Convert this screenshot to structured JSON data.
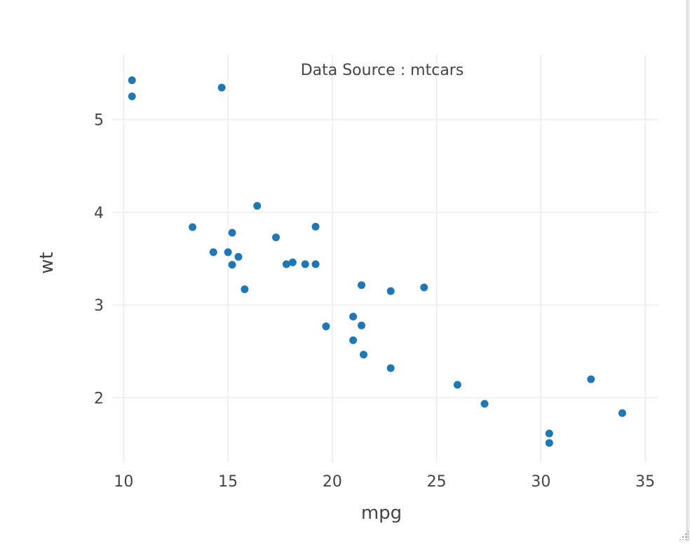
{
  "chart_data": {
    "type": "scatter",
    "title": "Data Source : mtcars",
    "xlabel": "mpg",
    "ylabel": "wt",
    "xlim": [
      9.45,
      35.6
    ],
    "ylim": [
      1.3,
      5.7
    ],
    "x_ticks": [
      10,
      15,
      20,
      25,
      30,
      35
    ],
    "y_ticks": [
      2,
      3,
      4,
      5
    ],
    "grid": true,
    "legend": "none",
    "marker_color": "#1f77b4",
    "points": [
      {
        "x": 21.0,
        "y": 2.62
      },
      {
        "x": 21.0,
        "y": 2.875
      },
      {
        "x": 22.8,
        "y": 2.32
      },
      {
        "x": 21.4,
        "y": 3.215
      },
      {
        "x": 18.7,
        "y": 3.44
      },
      {
        "x": 18.1,
        "y": 3.46
      },
      {
        "x": 14.3,
        "y": 3.57
      },
      {
        "x": 24.4,
        "y": 3.19
      },
      {
        "x": 22.8,
        "y": 3.15
      },
      {
        "x": 19.2,
        "y": 3.44
      },
      {
        "x": 17.8,
        "y": 3.44
      },
      {
        "x": 16.4,
        "y": 4.07
      },
      {
        "x": 17.3,
        "y": 3.73
      },
      {
        "x": 15.2,
        "y": 3.78
      },
      {
        "x": 10.4,
        "y": 5.25
      },
      {
        "x": 10.4,
        "y": 5.424
      },
      {
        "x": 14.7,
        "y": 5.345
      },
      {
        "x": 32.4,
        "y": 2.2
      },
      {
        "x": 30.4,
        "y": 1.615
      },
      {
        "x": 33.9,
        "y": 1.835
      },
      {
        "x": 21.5,
        "y": 2.465
      },
      {
        "x": 15.5,
        "y": 3.52
      },
      {
        "x": 15.2,
        "y": 3.435
      },
      {
        "x": 13.3,
        "y": 3.84
      },
      {
        "x": 19.2,
        "y": 3.845
      },
      {
        "x": 27.3,
        "y": 1.935
      },
      {
        "x": 26.0,
        "y": 2.14
      },
      {
        "x": 30.4,
        "y": 1.513
      },
      {
        "x": 15.8,
        "y": 3.17
      },
      {
        "x": 19.7,
        "y": 2.77
      },
      {
        "x": 15.0,
        "y": 3.57
      },
      {
        "x": 21.4,
        "y": 2.78
      }
    ]
  }
}
